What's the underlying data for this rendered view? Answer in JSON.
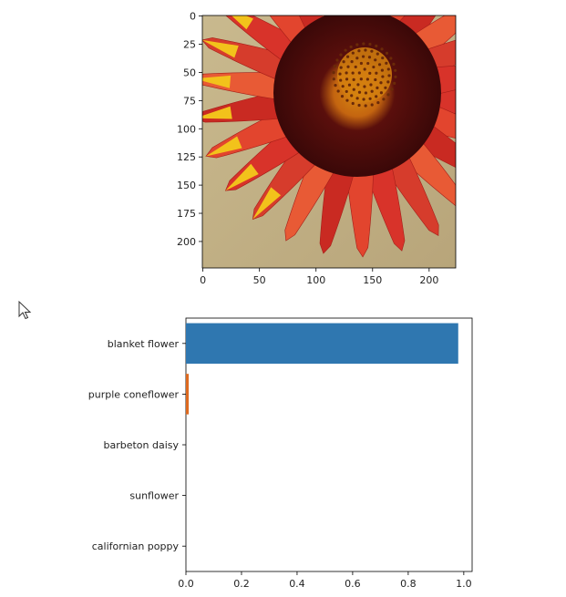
{
  "image_panel": {
    "xticks": [
      0,
      50,
      100,
      150,
      200
    ],
    "yticks": [
      0,
      25,
      50,
      75,
      100,
      125,
      150,
      175,
      200
    ],
    "extent": [
      224,
      224
    ],
    "image_subject": "flower-photo"
  },
  "chart_data": {
    "type": "bar",
    "orientation": "horizontal",
    "categories": [
      "blanket flower",
      "purple coneflower",
      "barbeton daisy",
      "sunflower",
      "californian poppy"
    ],
    "values": [
      0.98,
      0.01,
      0.0,
      0.0,
      0.0
    ],
    "colors": [
      "#2f77b0",
      "#dd6a20",
      "#3a9a3a",
      "#c44e52",
      "#8172b2"
    ],
    "xticks": [
      0.0,
      0.2,
      0.4,
      0.6,
      0.8,
      1.0
    ],
    "xtick_labels": [
      "0.0",
      "0.2",
      "0.4",
      "0.6",
      "0.8",
      "1.0"
    ],
    "xlim": [
      0,
      1.03
    ],
    "grid": false,
    "title": "",
    "xlabel": "",
    "ylabel": ""
  },
  "cursor": {
    "icon": "mouse-pointer-icon"
  }
}
